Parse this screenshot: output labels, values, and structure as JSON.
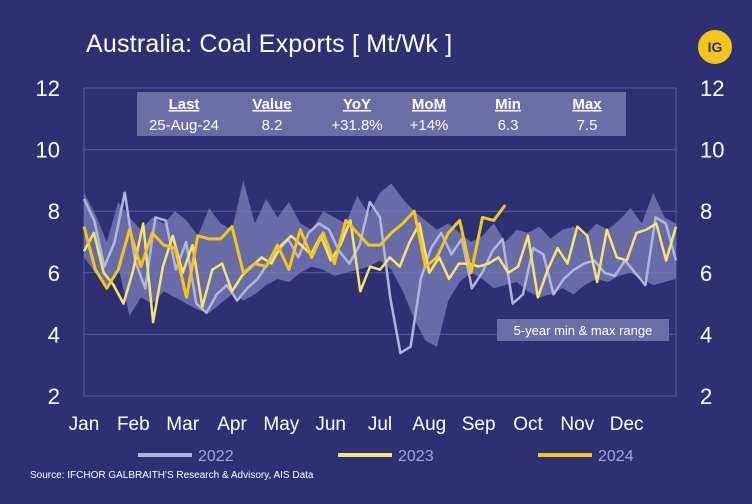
{
  "header": {
    "title": "Australia: Coal Exports [ Mt/Wk ]",
    "logo_text": "IG"
  },
  "source": "Source: IFCHOR GALBRAITH'S Research & Advisory, AIS Data",
  "stats": {
    "headers": [
      "Last",
      "Value",
      "YoY",
      "MoM",
      "Min",
      "Max"
    ],
    "values": [
      "25-Aug-24",
      "8.2",
      "+31.8%",
      "+14%",
      "6.3",
      "7.5"
    ]
  },
  "range_label": "5-year min & max range",
  "colors": {
    "background": "#2d3174",
    "range_fill": "#7b7fb8",
    "line_2022": "#b3b6dc",
    "line_2023": "#f7e56b",
    "line_2024": "#f5c518",
    "stats_box": "#6a6ea7"
  },
  "chart_data": {
    "type": "line",
    "x_unit": "week",
    "y_range": [
      2,
      12
    ],
    "y_ticks": [
      2,
      4,
      6,
      8,
      10,
      12
    ],
    "month_labels": [
      "Jan",
      "Feb",
      "Mar",
      "Apr",
      "May",
      "Jun",
      "Jul",
      "Aug",
      "Sep",
      "Oct",
      "Nov",
      "Dec"
    ],
    "grid": true,
    "legend_position": "bottom",
    "range_band": {
      "weeks": [
        1,
        2,
        3,
        4,
        5,
        6,
        7,
        8,
        9,
        10,
        11,
        12,
        13,
        14,
        15,
        16,
        17,
        18,
        19,
        20,
        21,
        22,
        23,
        24,
        25,
        26,
        27,
        28,
        29,
        30,
        31,
        32,
        33,
        34,
        35,
        36,
        37,
        38,
        39,
        40,
        41,
        42,
        43,
        44,
        45,
        46,
        47,
        48,
        49,
        50,
        51,
        52,
        53
      ],
      "min": [
        6.5,
        6.0,
        5.6,
        6.2,
        4.6,
        5.2,
        5.0,
        5.4,
        5.2,
        5.0,
        4.8,
        4.7,
        5.0,
        5.3,
        5.1,
        5.3,
        5.6,
        5.8,
        5.7,
        6.0,
        6.2,
        6.1,
        5.9,
        6.0,
        6.1,
        6.2,
        6.4,
        6.1,
        5.4,
        4.5,
        3.8,
        3.6,
        5.1,
        5.7,
        6.0,
        5.8,
        5.5,
        5.6,
        5.7,
        5.4,
        5.2,
        5.3,
        5.5,
        5.3,
        5.6,
        5.8,
        5.7,
        5.9,
        6.0,
        5.8,
        5.6,
        5.7,
        5.8
      ],
      "max": [
        8.6,
        7.9,
        7.0,
        8.3,
        7.8,
        7.4,
        7.8,
        7.6,
        8.0,
        7.7,
        7.2,
        8.1,
        7.6,
        7.4,
        9.0,
        7.6,
        8.4,
        7.8,
        8.3,
        7.6,
        7.4,
        8.0,
        7.8,
        7.6,
        8.5,
        7.9,
        8.6,
        8.9,
        8.4,
        8.0,
        7.7,
        7.4,
        7.6,
        7.3,
        7.0,
        7.2,
        7.6,
        7.0,
        7.4,
        7.3,
        7.5,
        7.1,
        7.4,
        7.5,
        7.2,
        7.6,
        7.4,
        7.7,
        8.1,
        7.6,
        8.6,
        7.8,
        7.6
      ]
    },
    "series": [
      {
        "name": "2022",
        "values": [
          8.4,
          7.7,
          6.2,
          7.0,
          8.6,
          6.4,
          5.5,
          7.8,
          7.7,
          6.1,
          7.0,
          5.0,
          4.7,
          5.3,
          5.6,
          5.1,
          5.5,
          5.8,
          6.3,
          6.7,
          7.1,
          6.5,
          7.3,
          7.6,
          7.4,
          6.7,
          6.3,
          6.9,
          8.3,
          7.8,
          5.2,
          3.4,
          3.6,
          5.8,
          6.8,
          7.3,
          6.6,
          7.1,
          5.5,
          6.0,
          6.7,
          7.1,
          5.0,
          5.3,
          6.8,
          6.6,
          5.3,
          5.8,
          6.1,
          6.3,
          6.4,
          6.0,
          5.9,
          6.4,
          6.0,
          5.6,
          7.8,
          7.6,
          6.4
        ]
      },
      {
        "name": "2023",
        "values": [
          6.7,
          7.3,
          6.0,
          5.6,
          5.0,
          6.1,
          7.6,
          4.4,
          6.2,
          7.2,
          6.0,
          6.9,
          4.9,
          6.1,
          6.3,
          5.4,
          5.9,
          6.2,
          6.5,
          6.3,
          6.9,
          7.2,
          6.9,
          6.6,
          7.2,
          6.4,
          6.9,
          7.7,
          5.4,
          6.2,
          6.1,
          6.5,
          6.2,
          7.0,
          7.6,
          6.0,
          6.5,
          5.8,
          6.3,
          6.3,
          6.2,
          6.3,
          6.5,
          6.0,
          6.2,
          7.2,
          5.2,
          6.1,
          6.8,
          6.3,
          7.5,
          7.2,
          5.7,
          7.4,
          6.5,
          6.4,
          7.3,
          7.4,
          7.6,
          6.4,
          7.5
        ]
      },
      {
        "name": "2024",
        "values": [
          7.5,
          6.1,
          5.5,
          6.1,
          7.4,
          6.2,
          7.3,
          6.9,
          6.8,
          5.2,
          7.2,
          7.1,
          7.1,
          7.5,
          6.0,
          6.3,
          6.2,
          6.9,
          6.1,
          7.4,
          6.5,
          7.3,
          6.3,
          7.7,
          7.3,
          6.9,
          6.9,
          7.3,
          7.6,
          8.0,
          6.2,
          6.5,
          7.3,
          7.7,
          6.0,
          7.8,
          7.7,
          8.2
        ]
      }
    ]
  }
}
